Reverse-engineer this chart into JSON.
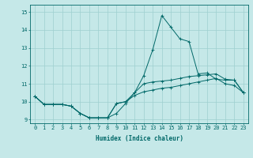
{
  "title": "",
  "xlabel": "Humidex (Indice chaleur)",
  "ylabel": "",
  "xlim": [
    -0.5,
    23.5
  ],
  "ylim": [
    8.8,
    15.4
  ],
  "background_color": "#c5e8e8",
  "grid_color": "#9ecfcf",
  "line_color": "#006868",
  "x": [
    0,
    1,
    2,
    3,
    4,
    5,
    6,
    7,
    8,
    9,
    10,
    11,
    12,
    13,
    14,
    15,
    16,
    17,
    18,
    19,
    20,
    21,
    22,
    23
  ],
  "line1": [
    10.3,
    9.85,
    9.85,
    9.85,
    9.75,
    9.35,
    9.1,
    9.1,
    9.1,
    9.35,
    9.9,
    10.5,
    11.45,
    12.9,
    14.8,
    14.15,
    13.5,
    13.35,
    11.55,
    11.6,
    11.25,
    11.2,
    11.2,
    10.5
  ],
  "line2": [
    10.3,
    9.85,
    9.85,
    9.85,
    9.75,
    9.35,
    9.1,
    9.1,
    9.1,
    9.9,
    10.0,
    10.5,
    11.0,
    11.1,
    11.15,
    11.2,
    11.3,
    11.4,
    11.45,
    11.5,
    11.55,
    11.25,
    11.2,
    10.5
  ],
  "line3": [
    10.3,
    9.85,
    9.85,
    9.85,
    9.75,
    9.35,
    9.1,
    9.1,
    9.1,
    9.9,
    10.0,
    10.35,
    10.55,
    10.65,
    10.75,
    10.8,
    10.9,
    11.0,
    11.1,
    11.2,
    11.3,
    11.0,
    10.9,
    10.5
  ],
  "yticks": [
    9,
    10,
    11,
    12,
    13,
    14,
    15
  ],
  "xticks": [
    0,
    1,
    2,
    3,
    4,
    5,
    6,
    7,
    8,
    9,
    10,
    11,
    12,
    13,
    14,
    15,
    16,
    17,
    18,
    19,
    20,
    21,
    22,
    23
  ],
  "xlabel_fontsize": 5.5,
  "tick_fontsize": 5.0,
  "linewidth": 0.7,
  "markersize": 2.5
}
